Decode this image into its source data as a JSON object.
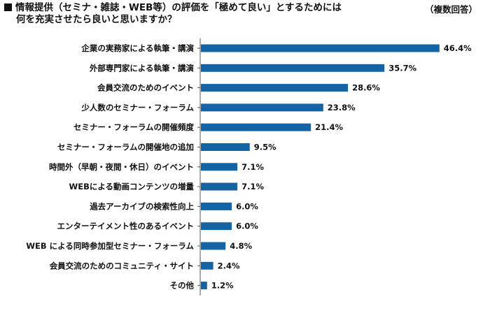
{
  "title_line1": "情報提供（セミナ・雑誌・WEB等）の評価を「極めて良い」とするためには",
  "title_line2": "何を充実させたら良いと思いますか？",
  "note": "（複数回答）",
  "colors": {
    "bar": "#1464a5",
    "axis": "#555555"
  },
  "chart_data": {
    "type": "bar",
    "orientation": "horizontal",
    "title": "情報提供（セミナ・雑誌・WEB等）の評価を「極めて良い」とするためには何を充実させたら良いと思いますか？",
    "categories": [
      "企業の実務家による執筆・講演",
      "外部専門家による執筆・講演",
      "会員交流のためのイベント",
      "少人数のセミナー・フォーラム",
      "セミナー・フォーラムの開催頻度",
      "セミナー・フォーラムの開催地の追加",
      "時間外（早朝・夜間・休日）のイベント",
      "WEBによる動画コンテンツの増量",
      "過去アーカイブの検索性向上",
      "エンターテイメント性のあるイベント",
      "WEB による同時参加型セミナー・フォーラム",
      "会員交流のためのコミュニティ・サイト",
      "その他"
    ],
    "values": [
      46.4,
      35.7,
      28.6,
      23.8,
      21.4,
      9.5,
      7.1,
      7.1,
      6.0,
      6.0,
      4.8,
      2.4,
      1.2
    ],
    "value_labels": [
      "46.4%",
      "35.7%",
      "28.6%",
      "23.8%",
      "21.4%",
      "9.5%",
      "7.1%",
      "7.1%",
      "6.0%",
      "6.0%",
      "4.8%",
      "2.4%",
      "1.2%"
    ],
    "unit": "%",
    "xlim": [
      0,
      50
    ],
    "grid": false,
    "legend": "none"
  }
}
